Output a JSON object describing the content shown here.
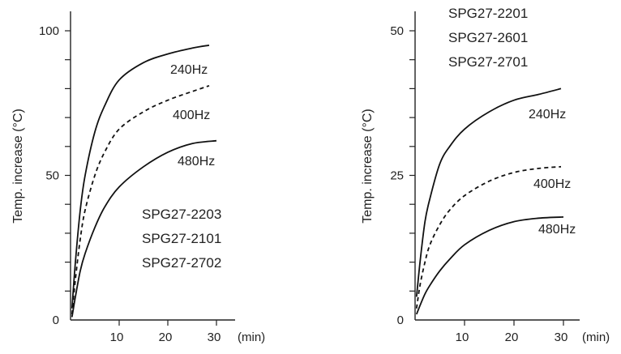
{
  "chart_data": [
    {
      "type": "line",
      "title": "",
      "xlabel": "",
      "x_unit": "(min)",
      "ylabel": "Temp. increase (°C)",
      "xlim": [
        0,
        33
      ],
      "ylim": [
        0,
        100
      ],
      "x_ticks": [
        10,
        20,
        30
      ],
      "y_ticks_labeled": [
        0,
        50,
        100
      ],
      "y_minor_step": 10,
      "models": [
        "SPG27-2203",
        "SPG27-2101",
        "SPG27-2702"
      ],
      "series": [
        {
          "name": "240Hz",
          "style": "solid",
          "x": [
            0.3,
            1,
            2,
            3,
            5,
            7,
            10,
            15,
            20,
            25,
            28.5
          ],
          "y": [
            4,
            20,
            38,
            50,
            65,
            74,
            83,
            89,
            92,
            94,
            95
          ]
        },
        {
          "name": "400Hz",
          "style": "dashed",
          "x": [
            0.3,
            1,
            2,
            3,
            5,
            7,
            10,
            15,
            20,
            25,
            28.5
          ],
          "y": [
            2,
            14,
            28,
            38,
            50,
            58,
            66,
            72,
            76,
            79,
            81
          ]
        },
        {
          "name": "480Hz",
          "style": "solid",
          "x": [
            0.3,
            1,
            2,
            3,
            5,
            7,
            10,
            15,
            20,
            25,
            30
          ],
          "y": [
            1,
            8,
            17,
            23,
            32,
            39,
            46,
            53,
            58,
            61,
            62
          ]
        }
      ]
    },
    {
      "type": "line",
      "title": "",
      "xlabel": "",
      "x_unit": "(min)",
      "ylabel": "Temp. increase (°C)",
      "xlim": [
        0,
        33
      ],
      "ylim": [
        0,
        50
      ],
      "x_ticks": [
        10,
        20,
        30
      ],
      "y_ticks_labeled": [
        0,
        25,
        50
      ],
      "y_minor_step": 5,
      "models": [
        "SPG27-2201",
        "SPG27-2601",
        "SPG27-2701"
      ],
      "series": [
        {
          "name": "240Hz",
          "style": "solid",
          "x": [
            0.3,
            1,
            2,
            3,
            5,
            7,
            10,
            15,
            20,
            25,
            29.5
          ],
          "y": [
            4,
            10,
            17,
            21,
            27,
            30,
            33,
            36,
            38,
            39,
            40
          ]
        },
        {
          "name": "400Hz",
          "style": "dashed",
          "x": [
            0.3,
            1,
            2,
            3,
            5,
            7,
            10,
            15,
            20,
            25,
            29.5
          ],
          "y": [
            2,
            6,
            10,
            13,
            16.5,
            19,
            21.5,
            24,
            25.5,
            26.2,
            26.5
          ]
        },
        {
          "name": "480Hz",
          "style": "solid",
          "x": [
            0.3,
            1,
            2,
            3,
            5,
            7,
            10,
            15,
            20,
            25,
            30
          ],
          "y": [
            1,
            2.5,
            4.5,
            6,
            8.5,
            10.5,
            13,
            15.5,
            17,
            17.6,
            17.8
          ]
        }
      ]
    }
  ]
}
